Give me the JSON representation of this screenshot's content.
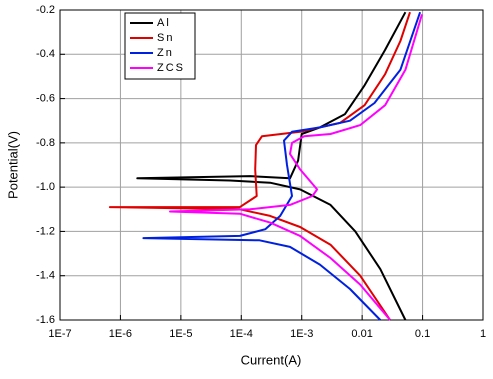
{
  "chart_data": {
    "type": "line",
    "xlabel": "Current(A)",
    "ylabel": "Potential(V)",
    "xscale": "log",
    "grid": true,
    "legend": "upper left",
    "xlim": [
      1e-07,
      1
    ],
    "ylim": [
      -1.6,
      -0.2
    ],
    "xticks": [
      {
        "value": 1e-07,
        "label": "1E-7"
      },
      {
        "value": 1e-06,
        "label": "1E-6"
      },
      {
        "value": 1e-05,
        "label": "1E-5"
      },
      {
        "value": 0.0001,
        "label": "1E-4"
      },
      {
        "value": 0.001,
        "label": "1E-3"
      },
      0.01,
      0.1,
      1
    ],
    "yticks": [
      {
        "value": -1.6,
        "label": "-1.6"
      },
      {
        "value": -1.4,
        "label": "-1.4"
      },
      {
        "value": -1.2,
        "label": "-1.2"
      },
      {
        "value": -1.0,
        "label": "-1.0"
      },
      {
        "value": -0.8,
        "label": "-0.8"
      },
      {
        "value": -0.6,
        "label": "-0.6"
      },
      {
        "value": -0.4,
        "label": "-0.4"
      },
      {
        "value": -0.2,
        "label": "-0.2"
      }
    ],
    "series": [
      {
        "name": "Al",
        "color": "#000000",
        "x": [
          0.052,
          0.02,
          0.0077,
          0.003,
          0.00094,
          0.0003,
          6.5e-05,
          1.9e-06,
          0.00014,
          0.00064,
          0.00087,
          0.001,
          0.002,
          0.0052,
          0.011,
          0.024,
          0.052
        ],
        "values": [
          -1.6,
          -1.37,
          -1.2,
          -1.08,
          -1.01,
          -0.98,
          -0.97,
          -0.96,
          -0.95,
          -0.96,
          -0.88,
          -0.76,
          -0.73,
          -0.67,
          -0.54,
          -0.38,
          -0.21
        ]
      },
      {
        "name": "Sn",
        "color": "#e00000",
        "x": [
          0.029,
          0.0093,
          0.003,
          0.00094,
          0.0003,
          9.5e-05,
          6.7e-07,
          9.5e-05,
          0.00018,
          0.00017,
          0.000175,
          0.00022,
          0.00094,
          0.0043,
          0.011,
          0.024,
          0.043,
          0.062
        ],
        "values": [
          -1.6,
          -1.4,
          -1.26,
          -1.18,
          -1.13,
          -1.1,
          -1.09,
          -1.09,
          -1.04,
          -0.92,
          -0.81,
          -0.77,
          -0.75,
          -0.71,
          -0.63,
          -0.49,
          -0.34,
          -0.21
        ]
      },
      {
        "name": "Zn",
        "color": "#0020e0",
        "x": [
          0.02,
          0.0063,
          0.002,
          0.00064,
          0.0002,
          2.4e-06,
          9.5e-05,
          0.00025,
          0.00044,
          0.00069,
          0.00057,
          0.00051,
          0.00069,
          0.002,
          0.0063,
          0.016,
          0.043,
          0.091
        ],
        "values": [
          -1.6,
          -1.46,
          -1.35,
          -1.27,
          -1.24,
          -1.23,
          -1.22,
          -1.19,
          -1.13,
          -1.04,
          -0.9,
          -0.79,
          -0.75,
          -0.73,
          -0.7,
          -0.62,
          -0.47,
          -0.21
        ]
      },
      {
        "name": "ZCS",
        "color": "#ff00ff",
        "x": [
          0.029,
          0.0093,
          0.003,
          0.00094,
          0.0003,
          9.5e-05,
          6.6e-06,
          0.00014,
          0.00064,
          0.0015,
          0.0018,
          0.00094,
          0.00064,
          0.00069,
          0.0011,
          0.003,
          0.0093,
          0.024,
          0.052,
          0.098
        ],
        "values": [
          -1.6,
          -1.44,
          -1.32,
          -1.22,
          -1.16,
          -1.12,
          -1.11,
          -1.1,
          -1.08,
          -1.04,
          -1.01,
          -0.92,
          -0.85,
          -0.8,
          -0.77,
          -0.76,
          -0.72,
          -0.63,
          -0.47,
          -0.22
        ]
      }
    ]
  }
}
